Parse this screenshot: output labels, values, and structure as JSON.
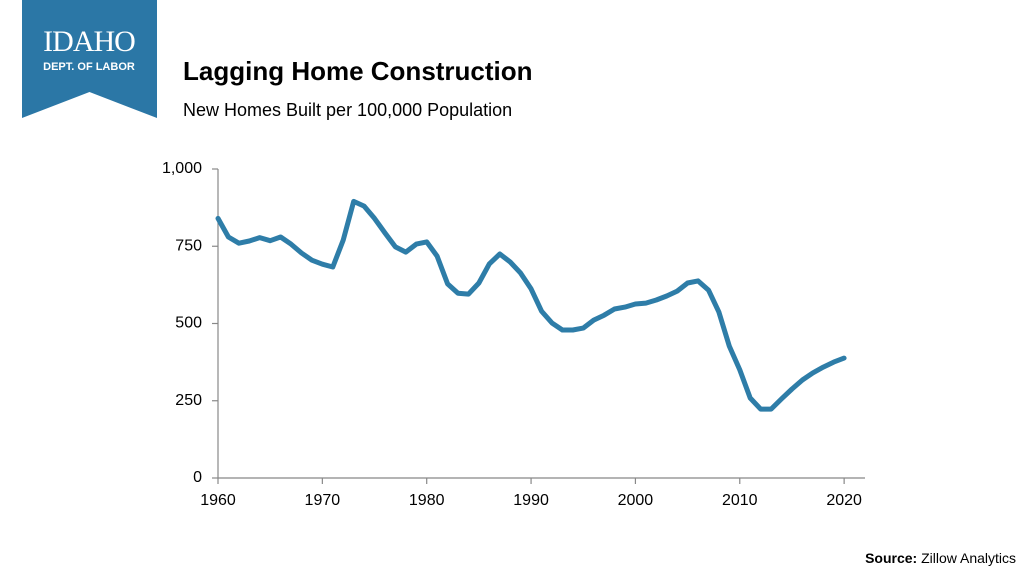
{
  "logo": {
    "name": "IDAHO",
    "dept": "DEPT. OF LABOR"
  },
  "source_label": "Source:",
  "source": "Zillow Analytics",
  "chart_data": {
    "type": "line",
    "title": "Lagging Home Construction",
    "subtitle": "New Homes Built per 100,000 Population",
    "x": [
      1960,
      1961,
      1962,
      1963,
      1964,
      1965,
      1966,
      1967,
      1968,
      1969,
      1970,
      1971,
      1972,
      1973,
      1974,
      1975,
      1976,
      1977,
      1978,
      1979,
      1980,
      1981,
      1982,
      1983,
      1984,
      1985,
      1986,
      1987,
      1988,
      1989,
      1990,
      1991,
      1992,
      1993,
      1994,
      1995,
      1996,
      1997,
      1998,
      1999,
      2000,
      2001,
      2002,
      2003,
      2004,
      2005,
      2006,
      2007,
      2008,
      2009,
      2010,
      2011,
      2012,
      2013,
      2014,
      2015,
      2016,
      2017,
      2018,
      2019,
      2020
    ],
    "values": [
      840,
      780,
      760,
      767,
      778,
      768,
      780,
      757,
      728,
      705,
      692,
      683,
      770,
      895,
      880,
      840,
      793,
      748,
      731,
      757,
      764,
      718,
      628,
      598,
      595,
      631,
      693,
      725,
      699,
      663,
      612,
      540,
      502,
      479,
      479,
      485,
      511,
      527,
      547,
      553,
      563,
      566,
      576,
      589,
      605,
      631,
      638,
      608,
      537,
      427,
      350,
      259,
      223,
      223,
      256,
      288,
      317,
      340,
      359,
      375,
      388
    ],
    "color": "#2e7da8",
    "xlim": [
      1960,
      2022
    ],
    "xticks": [
      1960,
      1970,
      1980,
      1990,
      2000,
      2010,
      2020
    ],
    "ylim": [
      0,
      1000
    ],
    "yticks": [
      0,
      250,
      500,
      750,
      {
        "value": 1000,
        "label": "1,000"
      }
    ],
    "grid": false
  }
}
